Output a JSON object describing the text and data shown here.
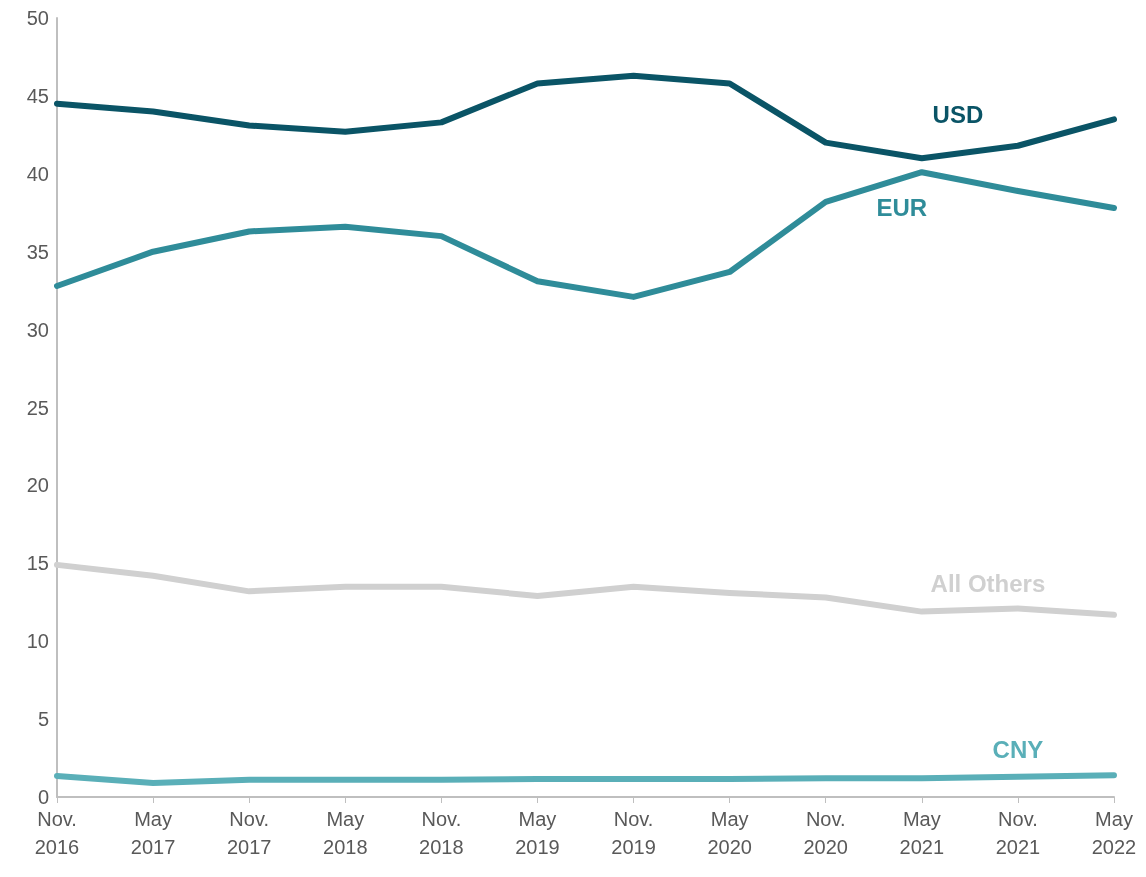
{
  "chart_data": {
    "type": "line",
    "categories": [
      "Nov. 2016",
      "May 2017",
      "Nov. 2017",
      "May 2018",
      "Nov. 2018",
      "May 2019",
      "Nov. 2019",
      "May 2020",
      "Nov. 2020",
      "May 2021",
      "Nov. 2021",
      "May 2022"
    ],
    "series": [
      {
        "name": "USD",
        "color": "#0a5466",
        "values": [
          44.5,
          44.0,
          43.1,
          42.7,
          43.3,
          45.8,
          46.3,
          45.8,
          42.0,
          41.0,
          41.8,
          43.5
        ]
      },
      {
        "name": "EUR",
        "color": "#2f8c99",
        "values": [
          32.8,
          35.0,
          36.3,
          36.6,
          36.0,
          33.1,
          32.1,
          33.7,
          38.2,
          40.1,
          38.9,
          37.8
        ]
      },
      {
        "name": "All Others",
        "color": "#d0d0d0",
        "values": [
          14.9,
          14.2,
          13.2,
          13.5,
          13.5,
          12.9,
          13.5,
          13.1,
          12.8,
          11.9,
          12.1,
          11.7
        ]
      },
      {
        "name": "CNY",
        "color": "#5aafb8",
        "values": [
          1.35,
          0.9,
          1.1,
          1.1,
          1.1,
          1.15,
          1.15,
          1.15,
          1.2,
          1.2,
          1.3,
          1.4
        ]
      }
    ],
    "ylim": [
      0,
      50
    ],
    "yticks": [
      0,
      5,
      10,
      15,
      20,
      25,
      30,
      35,
      40,
      45,
      50
    ],
    "grid": false,
    "legend": false,
    "marker": "none",
    "line_style": "solid"
  }
}
